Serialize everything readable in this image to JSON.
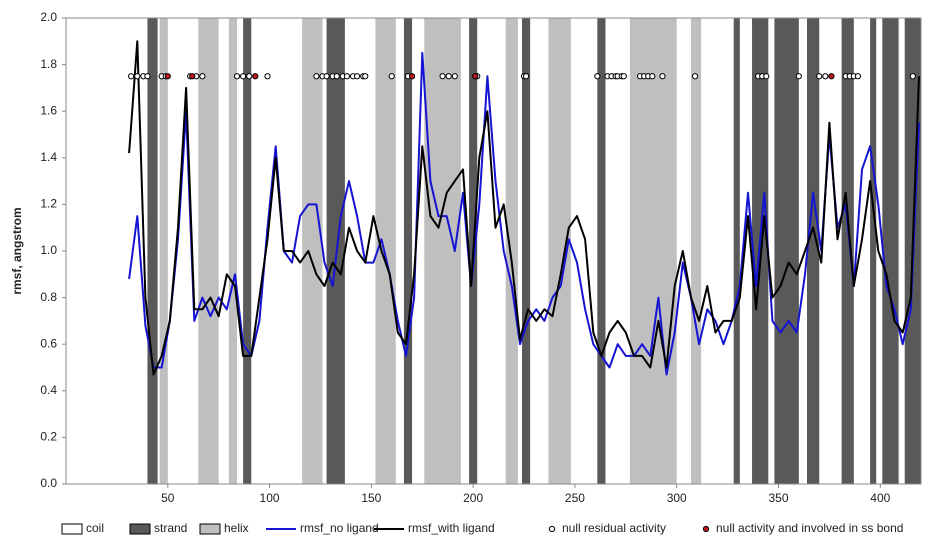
{
  "chart_data": {
    "type": "line",
    "ylabel": "rmsf, angstrom",
    "xlim": [
      0,
      420
    ],
    "ylim": [
      0,
      2
    ],
    "xticks": [
      50,
      100,
      150,
      200,
      250,
      300,
      350,
      400
    ],
    "yticks": [
      {
        "value": 0,
        "label": "0.0"
      },
      0.2,
      0.4,
      0.6,
      0.8,
      {
        "value": 1,
        "label": "1.0"
      },
      1.2,
      1.4,
      1.6,
      1.8,
      {
        "value": 2,
        "label": "2.0"
      }
    ],
    "regions": [
      {
        "name": "coil",
        "color": "#ffffff"
      },
      {
        "name": "strand",
        "color": "#595959",
        "ranges": [
          [
            40,
            45
          ],
          [
            87,
            91
          ],
          [
            128,
            137
          ],
          [
            166,
            170
          ],
          [
            198,
            202
          ],
          [
            224,
            228
          ],
          [
            261,
            265
          ],
          [
            328,
            331
          ],
          [
            337,
            345
          ],
          [
            348,
            360
          ],
          [
            364,
            370
          ],
          [
            381,
            387
          ],
          [
            395,
            398
          ],
          [
            401,
            409
          ],
          [
            412,
            420
          ]
        ]
      },
      {
        "name": "helix",
        "color": "#bfbfbf",
        "ranges": [
          [
            46,
            50
          ],
          [
            65,
            75
          ],
          [
            80,
            84
          ],
          [
            116,
            126
          ],
          [
            152,
            162
          ],
          [
            176,
            194
          ],
          [
            216,
            222
          ],
          [
            237,
            248
          ],
          [
            277,
            300
          ],
          [
            307,
            312
          ]
        ]
      }
    ],
    "x": [
      31,
      35,
      39,
      43,
      47,
      51,
      55,
      59,
      63,
      67,
      71,
      75,
      79,
      83,
      87,
      91,
      95,
      99,
      103,
      107,
      111,
      115,
      119,
      123,
      127,
      131,
      135,
      139,
      143,
      147,
      151,
      155,
      159,
      163,
      167,
      171,
      175,
      179,
      183,
      187,
      191,
      195,
      199,
      203,
      207,
      211,
      215,
      219,
      223,
      227,
      231,
      235,
      239,
      243,
      247,
      251,
      255,
      259,
      263,
      267,
      271,
      275,
      279,
      283,
      287,
      291,
      295,
      299,
      303,
      307,
      311,
      315,
      319,
      323,
      327,
      331,
      335,
      339,
      343,
      347,
      351,
      355,
      359,
      363,
      367,
      371,
      375,
      379,
      383,
      387,
      391,
      395,
      399,
      403,
      407,
      411,
      415,
      419
    ],
    "series": [
      {
        "name": "rmsf_no ligand",
        "color": "#1414d2",
        "values": [
          0.88,
          1.15,
          0.68,
          0.5,
          0.5,
          0.7,
          1.05,
          1.6,
          0.7,
          0.8,
          0.72,
          0.8,
          0.75,
          0.9,
          0.6,
          0.55,
          0.7,
          1.1,
          1.45,
          1.0,
          0.95,
          1.15,
          1.2,
          1.2,
          0.95,
          0.85,
          1.15,
          1.3,
          1.15,
          0.95,
          0.95,
          1.05,
          0.9,
          0.7,
          0.55,
          0.8,
          1.85,
          1.3,
          1.15,
          1.15,
          1.0,
          1.25,
          0.85,
          1.2,
          1.75,
          1.3,
          1.0,
          0.85,
          0.6,
          0.7,
          0.75,
          0.7,
          0.8,
          0.85,
          1.05,
          0.95,
          0.75,
          0.6,
          0.55,
          0.5,
          0.6,
          0.55,
          0.55,
          0.6,
          0.55,
          0.8,
          0.47,
          0.65,
          0.95,
          0.8,
          0.6,
          0.75,
          0.7,
          0.6,
          0.7,
          0.85,
          1.25,
          0.85,
          1.25,
          0.7,
          0.65,
          0.7,
          0.65,
          0.9,
          1.25,
          1.0,
          1.5,
          1.1,
          1.2,
          0.85,
          1.35,
          1.45,
          1.2,
          0.85,
          0.75,
          0.6,
          0.75,
          1.55
        ]
      },
      {
        "name": "rmsf_with ligand",
        "color": "#000000",
        "values": [
          1.42,
          1.9,
          0.8,
          0.47,
          0.55,
          0.7,
          1.1,
          1.7,
          0.75,
          0.75,
          0.8,
          0.72,
          0.9,
          0.85,
          0.55,
          0.55,
          0.8,
          1.05,
          1.4,
          1.0,
          1.0,
          0.95,
          1.0,
          0.9,
          0.85,
          0.95,
          0.9,
          1.1,
          1.0,
          0.95,
          1.15,
          1.0,
          0.9,
          0.65,
          0.6,
          0.9,
          1.45,
          1.15,
          1.1,
          1.25,
          1.3,
          1.35,
          0.85,
          1.4,
          1.6,
          1.1,
          1.2,
          0.95,
          0.62,
          0.75,
          0.7,
          0.75,
          0.72,
          0.9,
          1.1,
          1.15,
          1.05,
          0.65,
          0.55,
          0.65,
          0.7,
          0.65,
          0.55,
          0.55,
          0.5,
          0.7,
          0.5,
          0.85,
          1.0,
          0.8,
          0.7,
          0.85,
          0.65,
          0.7,
          0.7,
          0.8,
          1.15,
          0.75,
          1.15,
          0.8,
          0.85,
          0.95,
          0.9,
          1.0,
          1.1,
          0.95,
          1.55,
          1.05,
          1.25,
          0.85,
          1.05,
          1.3,
          1.0,
          0.9,
          0.7,
          0.65,
          0.8,
          1.75
        ]
      }
    ],
    "markers": [
      {
        "name": "null residual activity",
        "color": "#ffffff",
        "y": 1.75,
        "x": [
          32,
          35,
          38,
          40,
          47,
          49,
          61,
          64,
          67,
          84,
          87,
          90,
          99,
          123,
          126,
          128,
          131,
          133,
          136,
          138,
          141,
          143,
          146,
          147,
          160,
          168,
          185,
          188,
          191,
          202,
          225,
          226,
          261,
          266,
          268,
          270,
          271,
          273,
          274,
          282,
          284,
          286,
          288,
          293,
          309,
          340,
          342,
          344,
          360,
          370,
          373,
          383,
          385,
          387,
          389,
          416
        ]
      },
      {
        "name": "null activity and involved in ss bond",
        "color": "#c0171d",
        "y": 1.75,
        "x": [
          50,
          62,
          93,
          170,
          201,
          376
        ]
      }
    ]
  }
}
